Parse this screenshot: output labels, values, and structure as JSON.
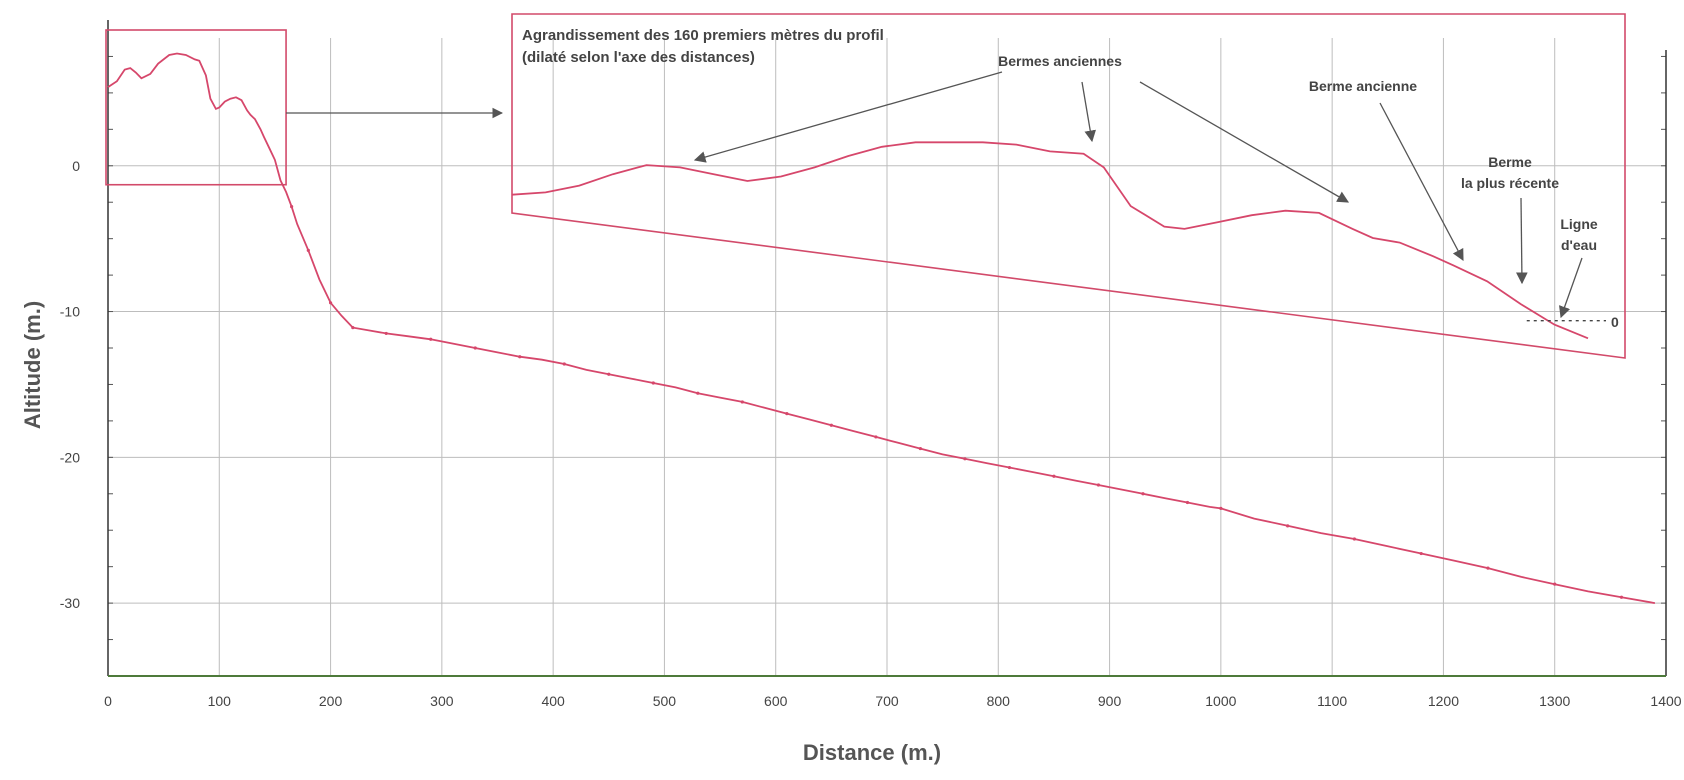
{
  "colors": {
    "profile": "#d6476b",
    "frame": "#d24a6a",
    "grid": "#bdbdbd",
    "arrow": "#555555",
    "baseline": "#4d7a3a"
  },
  "chart_data": [
    {
      "type": "line",
      "xlabel": "Distance (m.)",
      "ylabel": "Altitude (m.)",
      "xlim": [
        0,
        1400
      ],
      "ylim": [
        -35,
        10
      ],
      "xticks": [
        "0",
        "100",
        "200",
        "300",
        "400",
        "500",
        "600",
        "700",
        "800",
        "900",
        "1000",
        "1100",
        "1200",
        "1300",
        "1400"
      ],
      "yticks": [
        "0",
        "-10",
        "-20",
        "-30"
      ],
      "grid": true,
      "series": [
        {
          "x": [
            0,
            8,
            15,
            20,
            25,
            30,
            38,
            45,
            55,
            62,
            70,
            78,
            82,
            88,
            92,
            97,
            100,
            105,
            110,
            115,
            120,
            125,
            128,
            132,
            137,
            140,
            145,
            150,
            155,
            160,
            165,
            170,
            180,
            190,
            200,
            210,
            220,
            235,
            250,
            270,
            290,
            310,
            330,
            350,
            370,
            390,
            410,
            430,
            450,
            470,
            490,
            510,
            530,
            550,
            570,
            590,
            610,
            630,
            650,
            670,
            690,
            710,
            730,
            750,
            770,
            790,
            810,
            830,
            850,
            870,
            890,
            910,
            930,
            950,
            970,
            990,
            1000,
            1030,
            1060,
            1090,
            1120,
            1150,
            1180,
            1210,
            1240,
            1270,
            1300,
            1330,
            1360,
            1390
          ],
          "y": [
            5.4,
            5.8,
            6.6,
            6.7,
            6.4,
            6.0,
            6.3,
            7.0,
            7.6,
            7.7,
            7.6,
            7.3,
            7.2,
            6.2,
            4.6,
            3.9,
            4.0,
            4.4,
            4.6,
            4.7,
            4.5,
            3.8,
            3.5,
            3.2,
            2.5,
            2.0,
            1.2,
            0.4,
            -1.0,
            -1.8,
            -2.8,
            -4.0,
            -5.8,
            -7.8,
            -9.4,
            -10.3,
            -11.1,
            -11.3,
            -11.5,
            -11.7,
            -11.9,
            -12.2,
            -12.5,
            -12.8,
            -13.1,
            -13.3,
            -13.6,
            -14.0,
            -14.3,
            -14.6,
            -14.9,
            -15.2,
            -15.6,
            -15.9,
            -16.2,
            -16.6,
            -17.0,
            -17.4,
            -17.8,
            -18.2,
            -18.6,
            -19.0,
            -19.4,
            -19.8,
            -20.1,
            -20.4,
            -20.7,
            -21.0,
            -21.3,
            -21.6,
            -21.9,
            -22.2,
            -22.5,
            -22.8,
            -23.1,
            -23.4,
            -23.5,
            -24.2,
            -24.7,
            -25.2,
            -25.6,
            -26.1,
            -26.6,
            -27.1,
            -27.6,
            -28.2,
            -28.7,
            -29.2,
            -29.6,
            -30.0
          ]
        }
      ]
    },
    {
      "type": "line",
      "title": "Agrandissement des 160 premiers mètres  du profil",
      "subtitle": "(dilaté selon l'axe des distances)",
      "xlim": [
        0,
        160
      ],
      "ylim": [
        -1.5,
        7.8
      ],
      "series": [
        {
          "x": [
            0,
            5,
            10,
            15,
            20,
            25,
            30,
            35,
            40,
            45,
            50,
            55,
            60,
            65,
            70,
            75,
            80,
            85,
            88,
            92,
            97,
            100,
            105,
            110,
            115,
            120,
            125,
            128,
            132,
            137,
            140,
            145,
            150,
            155,
            160
          ],
          "y": [
            5.4,
            5.5,
            5.8,
            6.3,
            6.7,
            6.6,
            6.3,
            6.0,
            6.2,
            6.6,
            7.1,
            7.5,
            7.7,
            7.7,
            7.7,
            7.6,
            7.3,
            7.2,
            6.6,
            4.9,
            4.0,
            3.9,
            4.2,
            4.5,
            4.7,
            4.6,
            3.9,
            3.5,
            3.3,
            2.7,
            2.3,
            1.6,
            0.6,
            -0.3,
            -0.9
          ]
        }
      ],
      "annotations": [
        {
          "label": "Bermes anciennes"
        },
        {
          "label": "Berme ancienne"
        },
        {
          "label_line1": "Berme",
          "label_line2": "la plus récente"
        },
        {
          "label_line1": "Ligne",
          "label_line2": "d'eau"
        },
        {
          "label": "0"
        }
      ]
    }
  ]
}
